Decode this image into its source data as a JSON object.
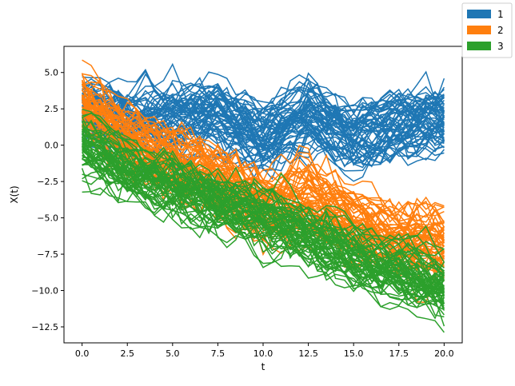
{
  "chart_data": {
    "type": "line",
    "title": "",
    "xlabel": "t",
    "ylabel": "X(t)",
    "xlim": [
      -1.0,
      21.0
    ],
    "ylim": [
      -13.6,
      6.8
    ],
    "xticks": [
      0.0,
      2.5,
      5.0,
      7.5,
      10.0,
      12.5,
      15.0,
      17.5,
      20.0
    ],
    "xtick_labels": [
      "0.0",
      "2.5",
      "5.0",
      "7.5",
      "10.0",
      "12.5",
      "15.0",
      "17.5",
      "20.0"
    ],
    "yticks": [
      5.0,
      2.5,
      0.0,
      -2.5,
      -5.0,
      -7.5,
      -10.0,
      -12.5
    ],
    "ytick_labels": [
      "5.0",
      "2.5",
      "0.0",
      "−2.5",
      "−5.0",
      "−7.5",
      "−10.0",
      "−12.5"
    ],
    "grid": false,
    "legend_position": "top-right, outside plot",
    "series": [
      {
        "name": "1",
        "color": "#1f77b4",
        "approx_mean": [
          [
            0,
            2.4
          ],
          [
            2.5,
            1.6
          ],
          [
            5,
            1.7
          ],
          [
            7.5,
            1.9
          ],
          [
            10,
            0.5
          ],
          [
            12.5,
            2.0
          ],
          [
            15,
            0.4
          ],
          [
            17.5,
            1.3
          ],
          [
            20,
            1.6
          ]
        ],
        "spread": 1.7
      },
      {
        "name": "2",
        "color": "#ff7f0e",
        "approx_mean": [
          [
            0,
            2.8
          ],
          [
            2.5,
            0.2
          ],
          [
            5,
            -1.3
          ],
          [
            7.5,
            -2.4
          ],
          [
            10,
            -4.3
          ],
          [
            12.5,
            -3.8
          ],
          [
            15,
            -5.6
          ],
          [
            17.5,
            -6.6
          ],
          [
            20,
            -7.2
          ]
        ],
        "spread": 1.8
      },
      {
        "name": "3",
        "color": "#2ca02c",
        "approx_mean": [
          [
            0,
            0.2
          ],
          [
            2.5,
            -1.8
          ],
          [
            5,
            -2.8
          ],
          [
            7.5,
            -3.9
          ],
          [
            10,
            -5.0
          ],
          [
            12.5,
            -6.4
          ],
          [
            15,
            -7.6
          ],
          [
            17.5,
            -8.7
          ],
          [
            20,
            -9.8
          ]
        ],
        "spread": 1.7
      }
    ]
  }
}
